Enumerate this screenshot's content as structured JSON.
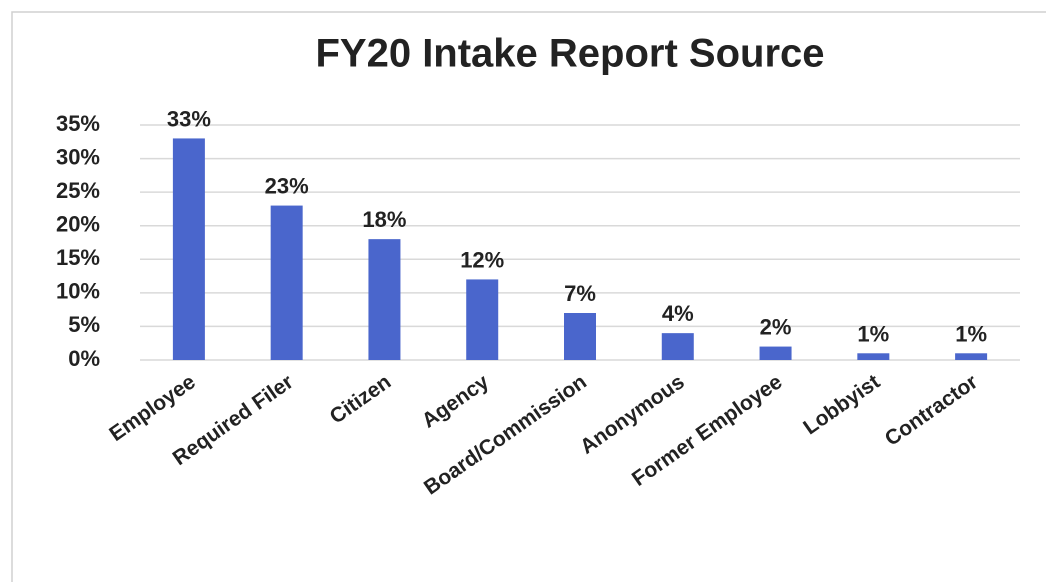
{
  "chart_data": {
    "type": "bar",
    "title": "FY20 Intake Report Source",
    "categories": [
      "Employee",
      "Required Filer",
      "Citizen",
      "Agency",
      "Board/Commission",
      "Anonymous",
      "Former Employee",
      "Lobbyist",
      "Contractor"
    ],
    "values": [
      33,
      23,
      18,
      12,
      7,
      4,
      2,
      1,
      1
    ],
    "value_labels": [
      "33%",
      "23%",
      "18%",
      "12%",
      "7%",
      "4%",
      "2%",
      "1%",
      "1%"
    ],
    "color": "#4a66cc",
    "ylim": [
      0,
      35
    ],
    "yticks": [
      {
        "value": 0,
        "label": "0%"
      },
      {
        "value": 5,
        "label": "5%"
      },
      {
        "value": 10,
        "label": "10%"
      },
      {
        "value": 15,
        "label": "15%"
      },
      {
        "value": 20,
        "label": "20%"
      },
      {
        "value": 25,
        "label": "25%"
      },
      {
        "value": 30,
        "label": "30%"
      },
      {
        "value": 35,
        "label": "35%"
      }
    ],
    "grid": true
  }
}
